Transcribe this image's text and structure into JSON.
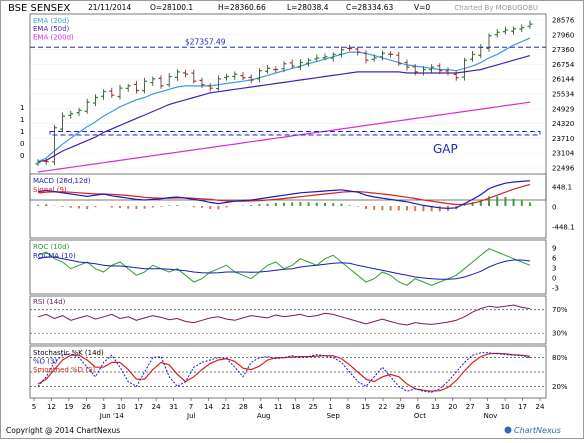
{
  "header": {
    "symbol": "BSE SENSEX",
    "date": "21/11/2014",
    "open": "O=28100.1",
    "high": "H=28360.66",
    "low": "L=28038.4",
    "close": "C=28334.63",
    "volume": "V=0",
    "credit": "Charted By MOBUGOBU"
  },
  "footer": {
    "copyright": "Copyright @ 2014 ChartNexus",
    "brand": "ChartNexus"
  },
  "colors": {
    "ema20": "#3d9bdc",
    "ema50": "#4a1fb0",
    "ema200": "#d82ad8",
    "annotation": "#1a2ab8",
    "up_candle": "#1a8a1a",
    "down_candle": "#c82020",
    "macd": "#1a1ab8",
    "signal": "#d82020",
    "roc": "#2aa02a",
    "rocma": "#1a1ab8",
    "rsi": "#7a1a5a",
    "stoch_k": "#1a1ab8",
    "stoch_d": "#d82020"
  },
  "chart_data": [
    {
      "type": "candlestick",
      "title": "BSE SENSEX",
      "ylim": [
        22000,
        28700
      ],
      "y_ticks": [
        "28576",
        "27960",
        "27360",
        "26754",
        "26144",
        "25534",
        "24929",
        "24320",
        "23710",
        "23104",
        "22496"
      ],
      "left_ticks": [
        "1",
        "1",
        "1",
        "0",
        "0"
      ],
      "x_ticks": [
        "5",
        "12",
        "19",
        "26",
        "3",
        "10",
        "17",
        "24",
        "31",
        "7",
        "14",
        "21",
        "28",
        "4",
        "11",
        "18",
        "25",
        "1",
        "8",
        "15",
        "22",
        "29",
        "6",
        "13",
        "20",
        "27",
        "3",
        "10",
        "17",
        "24"
      ],
      "months": [
        "Jun '14",
        "Jul",
        "Aug",
        "Sep",
        "Oct",
        "Nov"
      ],
      "legend": [
        "EMA (20d)",
        "EMA (50d)",
        "EMA (200d)"
      ],
      "resistance_label": "$27357.49",
      "resistance": 27357.49,
      "gap_low": 23590,
      "gap_high": 23740,
      "gap_label": "GAP",
      "closes": [
        22400,
        22450,
        23900,
        24400,
        24500,
        24650,
        25000,
        25200,
        25450,
        25300,
        25600,
        25700,
        25500,
        25900,
        26000,
        25700,
        26100,
        26300,
        26200,
        25900,
        25750,
        25600,
        26000,
        26100,
        26200,
        26050,
        25950,
        26350,
        26450,
        26400,
        26650,
        26550,
        26700,
        26800,
        26900,
        26950,
        27050,
        27250,
        27300,
        27150,
        26800,
        26900,
        27100,
        27050,
        26650,
        26500,
        26300,
        26400,
        26500,
        26350,
        26250,
        26050,
        26800,
        27050,
        27350,
        27850,
        28000,
        28100,
        28150,
        28200,
        28350
      ],
      "ema20": [
        22450,
        22600,
        22900,
        23200,
        23450,
        23700,
        23950,
        24150,
        24400,
        24600,
        24800,
        24950,
        25100,
        25200,
        25350,
        25450,
        25550,
        25650,
        25700,
        25700,
        25700,
        25700,
        25750,
        25800,
        25850,
        25900,
        25950,
        26050,
        26150,
        26250,
        26350,
        26450,
        26550,
        26650,
        26750,
        26850,
        26950,
        27050,
        27150,
        27150,
        27100,
        27000,
        26900,
        26800,
        26700,
        26600,
        26550,
        26500,
        26450,
        26400,
        26400,
        26350,
        26450,
        26550,
        26700,
        26900,
        27050,
        27250,
        27450,
        27600,
        27750
      ],
      "ema50": [
        22450,
        22500,
        22700,
        22900,
        23050,
        23200,
        23350,
        23500,
        23700,
        23850,
        24000,
        24150,
        24300,
        24450,
        24600,
        24750,
        24900,
        25000,
        25100,
        25200,
        25300,
        25400,
        25450,
        25500,
        25550,
        25600,
        25650,
        25700,
        25750,
        25800,
        25850,
        25900,
        25950,
        26000,
        26050,
        26100,
        26150,
        26200,
        26250,
        26300,
        26300,
        26300,
        26300,
        26300,
        26300,
        26250,
        26250,
        26250,
        26250,
        26250,
        26250,
        26250,
        26300,
        26350,
        26400,
        26500,
        26600,
        26700,
        26800,
        26900,
        27000
      ],
      "ema200": [
        22000,
        22050,
        22100,
        22150,
        22200,
        22250,
        22300,
        22350,
        22400,
        22450,
        22500,
        22550,
        22600,
        22650,
        22700,
        22750,
        22800,
        22850,
        22900,
        22950,
        23000,
        23050,
        23100,
        23150,
        23200,
        23250,
        23300,
        23350,
        23400,
        23450,
        23500,
        23550,
        23600,
        23650,
        23700,
        23750,
        23800,
        23850,
        23900,
        23950,
        24000,
        24050,
        24100,
        24150,
        24200,
        24250,
        24300,
        24350,
        24400,
        24450,
        24500,
        24550,
        24600,
        24650,
        24700,
        24750,
        24800,
        24850,
        24900,
        24950,
        25000
      ]
    },
    {
      "type": "line",
      "title": "MACD (26d,12d)",
      "legend": [
        "MACD (26d,12d)",
        "Signal (9)"
      ],
      "ylim": [
        -500,
        500
      ],
      "y_ticks": [
        "448.1",
        "0",
        "-448.1"
      ],
      "macd": [
        240,
        260,
        240,
        220,
        200,
        180,
        160,
        180,
        200,
        170,
        150,
        130,
        110,
        100,
        110,
        120,
        140,
        150,
        130,
        110,
        90,
        60,
        40,
        60,
        80,
        90,
        100,
        120,
        140,
        160,
        180,
        200,
        220,
        230,
        240,
        250,
        260,
        270,
        250,
        230,
        180,
        150,
        130,
        110,
        90,
        70,
        40,
        10,
        -10,
        -30,
        -40,
        -30,
        40,
        110,
        190,
        290,
        340,
        380,
        400,
        410,
        420
      ],
      "signal": [
        220,
        230,
        235,
        235,
        230,
        220,
        210,
        200,
        200,
        195,
        185,
        175,
        160,
        145,
        135,
        130,
        130,
        135,
        135,
        130,
        120,
        110,
        95,
        85,
        80,
        82,
        85,
        90,
        100,
        110,
        125,
        140,
        155,
        170,
        185,
        200,
        215,
        230,
        240,
        240,
        230,
        215,
        200,
        185,
        165,
        145,
        125,
        100,
        80,
        60,
        40,
        25,
        25,
        45,
        80,
        130,
        180,
        230,
        280,
        320,
        360
      ]
    },
    {
      "type": "line",
      "title": "ROC (10d)",
      "legend": [
        "ROC (10d)",
        "ROCMA (10)"
      ],
      "ylim": [
        -5,
        10
      ],
      "y_ticks": [
        "9",
        "6",
        "3",
        "0",
        "-3"
      ],
      "roc": [
        6,
        7,
        5,
        4,
        2,
        3,
        4,
        2,
        1,
        3,
        4,
        2,
        0,
        1,
        3,
        2,
        1,
        2,
        0,
        -2,
        -1,
        1,
        2,
        3,
        1,
        0,
        -1,
        1,
        3,
        4,
        2,
        3,
        5,
        4,
        3,
        5,
        6,
        4,
        2,
        0,
        -2,
        -1,
        1,
        0,
        -2,
        -3,
        -1,
        -2,
        -3,
        -2,
        -1,
        0,
        2,
        4,
        6,
        8,
        7,
        6,
        5,
        4,
        3
      ],
      "rocma": [
        5,
        5.5,
        5.5,
        5,
        4.5,
        4,
        3.8,
        3.5,
        3,
        2.8,
        2.8,
        2.6,
        2.3,
        2,
        2,
        2,
        1.8,
        1.6,
        1.4,
        1,
        0.8,
        0.7,
        0.8,
        1,
        1,
        1,
        0.9,
        1,
        1.2,
        1.5,
        1.8,
        2,
        2.5,
        2.8,
        3,
        3.3,
        3.6,
        3.8,
        3.6,
        3,
        2.5,
        2,
        1.5,
        1,
        0.5,
        0,
        -0.5,
        -0.8,
        -1,
        -1.2,
        -1.2,
        -1,
        -0.5,
        0.3,
        1.2,
        2.5,
        3.5,
        4.2,
        4.6,
        4.6,
        4.3
      ]
    },
    {
      "type": "line",
      "title": "RSI (14d)",
      "legend": [
        "RSI (14d)"
      ],
      "ylim": [
        15,
        90
      ],
      "y_ticks": [
        "70%",
        "30%"
      ],
      "levels": [
        70,
        30
      ],
      "rsi": [
        58,
        62,
        55,
        60,
        52,
        56,
        60,
        54,
        58,
        62,
        55,
        58,
        52,
        56,
        60,
        57,
        53,
        55,
        50,
        48,
        52,
        56,
        58,
        54,
        52,
        56,
        60,
        58,
        56,
        61,
        58,
        60,
        62,
        58,
        60,
        64,
        62,
        58,
        54,
        50,
        46,
        50,
        54,
        50,
        46,
        44,
        48,
        46,
        45,
        47,
        49,
        52,
        58,
        66,
        72,
        76,
        74,
        76,
        78,
        74,
        72
      ]
    },
    {
      "type": "line",
      "title": "Stochastic %K (14d)",
      "legend": [
        "Stochastic %K (14d)",
        "%D (3)",
        "Smoothed %D (3)"
      ],
      "ylim": [
        0,
        100
      ],
      "y_ticks": [
        "80%",
        "20%"
      ],
      "levels": [
        80,
        50,
        20
      ],
      "k": [
        20,
        40,
        70,
        85,
        88,
        80,
        60,
        40,
        70,
        85,
        60,
        30,
        20,
        50,
        80,
        82,
        40,
        20,
        30,
        60,
        70,
        75,
        80,
        78,
        60,
        40,
        70,
        80,
        82,
        78,
        80,
        84,
        80,
        82,
        86,
        84,
        80,
        70,
        50,
        30,
        20,
        40,
        60,
        40,
        20,
        10,
        15,
        10,
        8,
        15,
        30,
        50,
        70,
        85,
        90,
        90,
        88,
        86,
        85,
        84,
        80
      ],
      "d": [
        25,
        35,
        55,
        75,
        85,
        85,
        75,
        60,
        60,
        70,
        70,
        55,
        35,
        35,
        55,
        70,
        65,
        45,
        30,
        40,
        55,
        68,
        75,
        78,
        72,
        58,
        55,
        62,
        75,
        80,
        80,
        81,
        82,
        82,
        83,
        84,
        84,
        78,
        65,
        50,
        35,
        30,
        40,
        45,
        40,
        25,
        15,
        12,
        10,
        11,
        18,
        32,
        52,
        70,
        82,
        88,
        89,
        88,
        86,
        85,
        83
      ]
    }
  ]
}
